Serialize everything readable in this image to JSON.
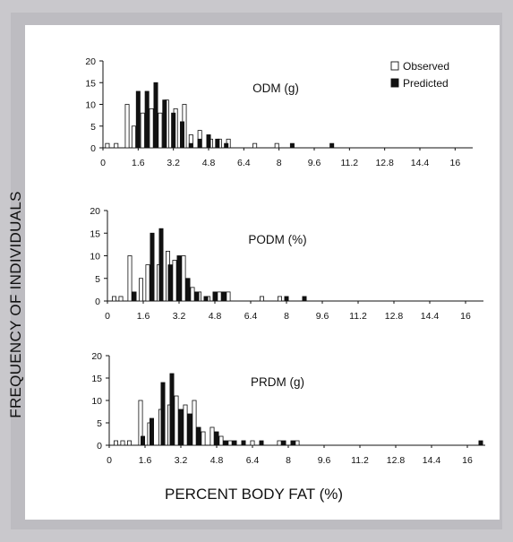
{
  "figure": {
    "ylabel": "FREQUENCY OF INDIVIDUALS",
    "xlabel": "PERCENT BODY FAT (%)"
  },
  "legend": {
    "items": [
      {
        "name": "Observed",
        "fill": "#ffffff"
      },
      {
        "name": "Predicted",
        "fill": "#111111"
      }
    ],
    "placement": "top-right of first panel"
  },
  "chart_data": [
    {
      "type": "bar",
      "title": "ODM (g)",
      "xlim": [
        0,
        16.8
      ],
      "ylim": [
        0,
        20
      ],
      "xticks": [
        "0",
        "1.6",
        "3.2",
        "4.8",
        "6.4",
        "8",
        "9.6",
        "11.2",
        "12.8",
        "14.4",
        "16"
      ],
      "yticks": [
        "0",
        "5",
        "10",
        "15",
        "20"
      ],
      "series": [
        {
          "name": "Observed",
          "x": [
            0.2,
            0.6,
            1.1,
            1.4,
            1.8,
            2.2,
            2.6,
            2.9,
            3.3,
            3.7,
            4.0,
            4.4,
            4.9,
            5.3,
            5.7,
            6.9,
            7.9
          ],
          "values": [
            1,
            1,
            10,
            5,
            8,
            9,
            8,
            11,
            9,
            10,
            3,
            4,
            2,
            2,
            2,
            1,
            1
          ]
        },
        {
          "name": "Predicted",
          "x": [
            1.6,
            2.0,
            2.4,
            2.8,
            3.2,
            3.6,
            4.0,
            4.4,
            4.8,
            5.2,
            5.6,
            8.6,
            10.4
          ],
          "values": [
            13,
            13,
            15,
            11,
            8,
            6,
            1,
            2,
            3,
            2,
            1,
            1,
            1
          ]
        }
      ]
    },
    {
      "type": "bar",
      "title": "PODM (%)",
      "xlim": [
        0,
        16.8
      ],
      "ylim": [
        0,
        20
      ],
      "xticks": [
        "0",
        "1.6",
        "3.2",
        "4.8",
        "6.4",
        "8",
        "9.6",
        "11.2",
        "12.8",
        "14.4",
        "16"
      ],
      "yticks": [
        "0",
        "5",
        "10",
        "15",
        "20"
      ],
      "series": [
        {
          "name": "Observed",
          "x": [
            0.3,
            0.6,
            1.0,
            1.5,
            1.8,
            2.3,
            2.7,
            3.0,
            3.4,
            3.8,
            4.1,
            4.5,
            5.0,
            5.4,
            6.9,
            7.7
          ],
          "values": [
            1,
            1,
            10,
            5,
            8,
            8,
            11,
            9,
            10,
            3,
            2,
            1,
            2,
            2,
            1,
            1
          ]
        },
        {
          "name": "Predicted",
          "x": [
            1.2,
            2.0,
            2.4,
            2.8,
            3.2,
            3.6,
            4.0,
            4.4,
            4.8,
            5.2,
            8.0,
            8.8
          ],
          "values": [
            2,
            15,
            16,
            8,
            10,
            5,
            2,
            1,
            2,
            2,
            1,
            1
          ]
        }
      ]
    },
    {
      "type": "bar",
      "title": "PRDM (g)",
      "xlim": [
        0,
        16.8
      ],
      "ylim": [
        0,
        20
      ],
      "xticks": [
        "0",
        "1.6",
        "3.2",
        "4.8",
        "6.4",
        "8",
        "9.6",
        "11.2",
        "12.8",
        "14.4",
        "16"
      ],
      "yticks": [
        "0",
        "5",
        "10",
        "15",
        "20"
      ],
      "series": [
        {
          "name": "Observed",
          "x": [
            0.3,
            0.6,
            0.9,
            1.4,
            1.8,
            2.3,
            2.7,
            3.0,
            3.4,
            3.8,
            4.2,
            4.6,
            5.0,
            5.4,
            6.0,
            6.4,
            7.6,
            8.4
          ],
          "values": [
            1,
            1,
            1,
            10,
            5,
            8,
            9,
            11,
            9,
            10,
            3,
            4,
            2,
            1,
            1,
            1,
            1,
            1
          ]
        },
        {
          "name": "Predicted",
          "x": [
            1.5,
            1.9,
            2.4,
            2.8,
            3.2,
            3.6,
            4.0,
            4.8,
            5.2,
            5.6,
            6.0,
            6.8,
            7.8,
            8.2,
            16.6
          ],
          "values": [
            2,
            6,
            14,
            16,
            8,
            7,
            4,
            3,
            1,
            1,
            1,
            1,
            1,
            1,
            1
          ]
        }
      ]
    }
  ]
}
